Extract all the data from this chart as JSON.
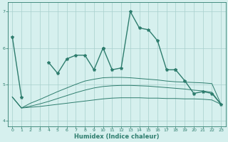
{
  "x": [
    0,
    1,
    2,
    3,
    4,
    5,
    6,
    7,
    8,
    9,
    10,
    11,
    12,
    13,
    14,
    15,
    16,
    17,
    18,
    19,
    20,
    21,
    22,
    23
  ],
  "line1_x": [
    0,
    1
  ],
  "line1_y": [
    6.3,
    4.65
  ],
  "line2_x": [
    4,
    5,
    6,
    7,
    8,
    9,
    10
  ],
  "line2_y": [
    5.6,
    5.3,
    5.7,
    5.8,
    5.8,
    5.4,
    6.0
  ],
  "line_main_x": [
    10,
    11,
    12,
    13,
    14,
    15,
    16,
    17,
    18
  ],
  "line_main_y": [
    6.0,
    5.4,
    5.45,
    7.0,
    6.55,
    6.5,
    6.2,
    5.4,
    5.4
  ],
  "line3_x": [
    18,
    19,
    20,
    21,
    22,
    23
  ],
  "line3_y": [
    5.4,
    5.1,
    4.75,
    4.8,
    4.75,
    4.45
  ],
  "line_lower1": [
    4.65,
    4.35,
    4.37,
    4.39,
    4.42,
    4.45,
    4.48,
    4.51,
    4.54,
    4.57,
    4.6,
    4.62,
    4.63,
    4.63,
    4.63,
    4.62,
    4.62,
    4.61,
    4.61,
    4.6,
    4.6,
    4.59,
    4.57,
    4.45
  ],
  "line_lower2": [
    4.65,
    4.35,
    4.4,
    4.46,
    4.53,
    4.61,
    4.69,
    4.77,
    4.84,
    4.9,
    4.94,
    4.96,
    4.97,
    4.97,
    4.96,
    4.95,
    4.93,
    4.91,
    4.89,
    4.87,
    4.84,
    4.82,
    4.78,
    4.45
  ],
  "line_mid": [
    4.65,
    4.35,
    4.48,
    4.58,
    4.69,
    4.8,
    4.9,
    5.0,
    5.09,
    5.14,
    5.18,
    5.19,
    5.19,
    5.18,
    5.16,
    5.14,
    5.12,
    5.09,
    5.07,
    5.06,
    5.05,
    5.04,
    5.02,
    4.45
  ],
  "xlabel": "Humidex (Indice chaleur)",
  "color": "#2e7d6e",
  "bg_color": "#d6f0ee",
  "grid_color": "#a8d0cc",
  "xlim": [
    -0.5,
    23.5
  ],
  "ylim": [
    3.85,
    7.25
  ],
  "yticks": [
    4,
    5,
    6,
    7
  ],
  "xticks": [
    0,
    1,
    2,
    3,
    4,
    5,
    6,
    7,
    8,
    9,
    10,
    11,
    12,
    13,
    14,
    15,
    16,
    17,
    18,
    19,
    20,
    21,
    22,
    23
  ]
}
